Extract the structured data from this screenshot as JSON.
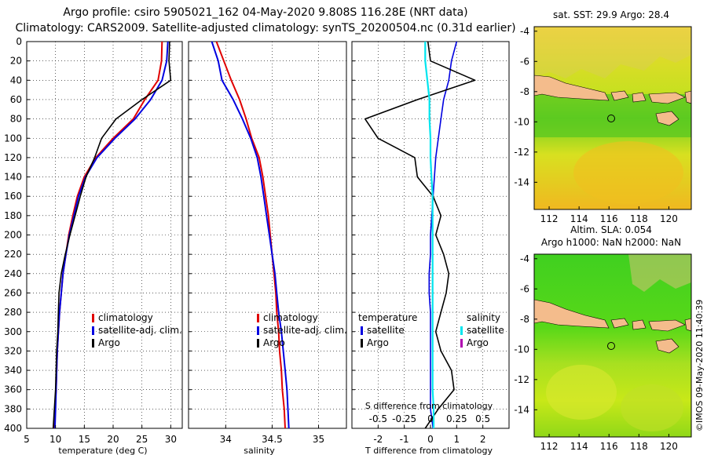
{
  "figure": {
    "title_line1": "Argo profile: csiro 5905021_162 04-May-2020 9.808S 116.28E (NRT data)",
    "title_line2": "Climatology: CARS2009. Satellite-adjusted climatology: synTS_20200504.nc (0.31d earlier)",
    "timestamp": "©IMOS 09-May-2020 11:40:39"
  },
  "colors": {
    "climatology": "#e00000",
    "satellite": "#0000e0",
    "argo": "#000000",
    "sal_satellite": "#00e5ee",
    "sal_argo": "#b000b0"
  },
  "legends": {
    "temp": [
      "climatology",
      "satellite-adj. clim.",
      "Argo"
    ],
    "sal": [
      "climatology",
      "satellite-adj. clim.",
      "Argo"
    ],
    "diff_temperature_header": "temperature",
    "diff_salinity_header": "salinity",
    "diff_temp_items": [
      "satellite",
      "Argo"
    ],
    "diff_sal_items": [
      "satellite",
      "Argo"
    ]
  },
  "maps": {
    "sst_title": "sat. SST: 29.9 Argo: 28.4",
    "sla_title1": "Altim. SLA: 0.054",
    "sla_title2": "Argo h1000: NaN h2000: NaN",
    "xticks": [
      "112",
      "114",
      "116",
      "118",
      "120"
    ],
    "yticks": [
      "-4",
      "-6",
      "-8",
      "-10",
      "-12",
      "-14"
    ],
    "lon_range": [
      111,
      121.5
    ],
    "lat_range": [
      -15.8,
      -3.7
    ],
    "argo_lon": 116.28,
    "argo_lat": -9.808
  },
  "chart_data": [
    {
      "type": "line",
      "title": "",
      "xlabel": "temperature (deg C)",
      "ylabel": "",
      "xlim": [
        5,
        32
      ],
      "ylim": [
        400,
        0
      ],
      "xticks": [
        "5",
        "10",
        "15",
        "20",
        "25",
        "30"
      ],
      "yticks": [
        "0",
        "20",
        "40",
        "60",
        "80",
        "100",
        "120",
        "140",
        "160",
        "180",
        "200",
        "220",
        "240",
        "260",
        "280",
        "300",
        "320",
        "340",
        "360",
        "380",
        "400"
      ],
      "y": [
        0,
        20,
        40,
        60,
        80,
        100,
        120,
        140,
        160,
        180,
        200,
        220,
        240,
        260,
        280,
        300,
        320,
        340,
        360,
        380,
        400
      ],
      "series": [
        {
          "name": "climatology",
          "values": [
            28.5,
            28.4,
            27.8,
            25.5,
            23.5,
            20.0,
            17.0,
            15.0,
            13.8,
            13.0,
            12.3,
            11.8,
            11.3,
            11.0,
            10.7,
            10.5,
            10.3,
            10.2,
            10.1,
            9.9,
            9.8
          ]
        },
        {
          "name": "satellite-adj. clim.",
          "values": [
            29.5,
            29.3,
            28.5,
            26.5,
            23.8,
            20.3,
            17.2,
            15.2,
            14.0,
            13.2,
            12.4,
            11.8,
            11.3,
            11.0,
            10.7,
            10.5,
            10.3,
            10.2,
            10.1,
            10.0,
            9.9
          ]
        },
        {
          "name": "Argo",
          "values": [
            29.8,
            29.7,
            30.0,
            25.0,
            20.5,
            18.0,
            16.8,
            15.3,
            14.3,
            13.4,
            12.5,
            11.7,
            11.0,
            10.6,
            10.5,
            10.4,
            10.2,
            10.1,
            10.0,
            9.8,
            9.6
          ]
        }
      ]
    },
    {
      "type": "line",
      "title": "",
      "xlabel": "salinity",
      "ylabel": "",
      "xlim": [
        33.6,
        35.3
      ],
      "ylim": [
        400,
        0
      ],
      "xticks": [
        "34",
        "34.5",
        "35"
      ],
      "yticks": [],
      "y": [
        0,
        20,
        40,
        60,
        80,
        100,
        120,
        140,
        160,
        180,
        200,
        220,
        240,
        260,
        280,
        300,
        320,
        340,
        360,
        380,
        400
      ],
      "series": [
        {
          "name": "climatology",
          "values": [
            33.9,
            33.98,
            34.06,
            34.15,
            34.22,
            34.28,
            34.36,
            34.4,
            34.43,
            34.46,
            34.48,
            34.5,
            34.52,
            34.54,
            34.55,
            34.57,
            34.58,
            34.6,
            34.61,
            34.63,
            34.64
          ]
        },
        {
          "name": "satellite-adj. clim.",
          "values": [
            33.85,
            33.92,
            33.96,
            34.08,
            34.18,
            34.27,
            34.34,
            34.38,
            34.41,
            34.44,
            34.47,
            34.5,
            34.53,
            34.55,
            34.57,
            34.6,
            34.62,
            34.64,
            34.66,
            34.67,
            34.68
          ]
        },
        {
          "name": "Argo",
          "values": []
        }
      ]
    },
    {
      "type": "line",
      "title": "",
      "xlabel": "T difference from climatology",
      "xlabel_top": "S difference from climatology",
      "ylabel": "",
      "xlim": [
        -3,
        3
      ],
      "ylim": [
        400,
        0
      ],
      "xticks_bottom": [
        "-2",
        "-1",
        "0",
        "1",
        "2"
      ],
      "xticks_top": [
        "-0.5",
        "-0.25",
        "0",
        "0.25",
        "0.5"
      ],
      "y": [
        0,
        20,
        40,
        60,
        80,
        100,
        120,
        140,
        160,
        180,
        200,
        220,
        240,
        260,
        280,
        300,
        320,
        340,
        360,
        380,
        400
      ],
      "series": [
        {
          "name": "temperature satellite",
          "values": [
            1.0,
            0.8,
            0.7,
            0.5,
            0.4,
            0.3,
            0.2,
            0.15,
            0.1,
            0.05,
            0.0,
            0.0,
            -0.05,
            -0.05,
            0.0,
            0.0,
            0.0,
            0.0,
            0.0,
            0.0,
            0.1
          ]
        },
        {
          "name": "temperature Argo",
          "values": [
            -0.1,
            0.0,
            1.7,
            -0.5,
            -2.5,
            -2.0,
            -0.6,
            -0.5,
            0.1,
            0.4,
            0.2,
            0.5,
            0.7,
            0.6,
            0.4,
            0.2,
            0.4,
            0.8,
            0.9,
            0.3,
            -0.2
          ]
        },
        {
          "name": "salinity satellite",
          "values": [
            -0.05,
            -0.05,
            -0.03,
            -0.01,
            -0.01,
            0.0,
            0.0,
            0.01,
            0.02,
            0.02,
            0.02,
            0.02,
            0.02,
            0.02,
            0.02,
            0.02,
            0.02,
            0.02,
            0.02,
            0.03,
            0.03
          ]
        },
        {
          "name": "salinity Argo",
          "values": []
        }
      ]
    }
  ]
}
